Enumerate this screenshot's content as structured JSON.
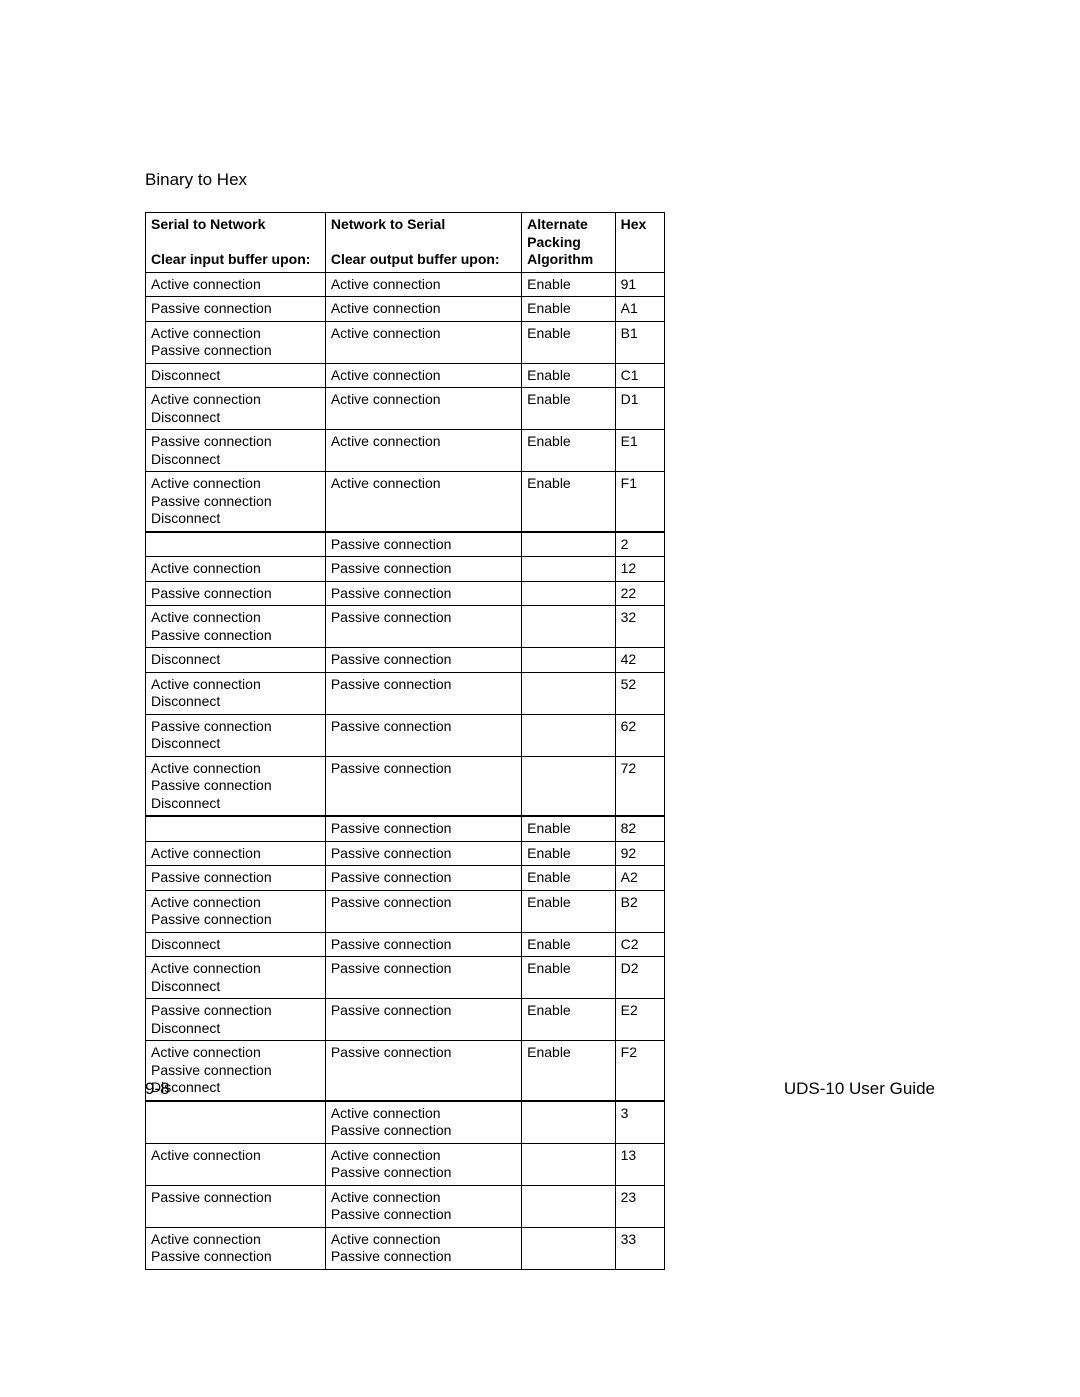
{
  "title": "Binary to Hex",
  "headers": {
    "col1_line1": "Serial to Network",
    "col1_line2": "Clear input buffer upon:",
    "col2_line1": "Network to Serial",
    "col2_line2": "Clear output buffer upon:",
    "col3_line1": "Alternate",
    "col3_line2": "Packing",
    "col3_line3": "Algorithm",
    "col4": "Hex"
  },
  "rows": [
    {
      "c1": "Active connection",
      "c2": "Active connection",
      "c3": "Enable",
      "c4": "91"
    },
    {
      "c1": "Passive connection",
      "c2": "Active connection",
      "c3": "Enable",
      "c4": "A1"
    },
    {
      "c1": "Active connection\nPassive connection",
      "c2": "Active connection",
      "c3": "Enable",
      "c4": "B1"
    },
    {
      "c1": "Disconnect",
      "c2": "Active connection",
      "c3": "Enable",
      "c4": "C1"
    },
    {
      "c1": "Active connection\nDisconnect",
      "c2": "Active connection",
      "c3": "Enable",
      "c4": "D1"
    },
    {
      "c1": "Passive connection\nDisconnect",
      "c2": "Active connection",
      "c3": "Enable",
      "c4": "E1"
    },
    {
      "c1": "Active connection\nPassive connection\nDisconnect",
      "c2": "Active connection",
      "c3": "Enable",
      "c4": "F1",
      "thickBottom": true
    },
    {
      "c1": "",
      "c2": "Passive connection",
      "c3": "",
      "c4": "2"
    },
    {
      "c1": "Active connection",
      "c2": "Passive connection",
      "c3": "",
      "c4": "12"
    },
    {
      "c1": "Passive connection",
      "c2": "Passive connection",
      "c3": "",
      "c4": "22"
    },
    {
      "c1": "Active connection\nPassive connection",
      "c2": "Passive connection",
      "c3": "",
      "c4": "32"
    },
    {
      "c1": "Disconnect",
      "c2": "Passive connection",
      "c3": "",
      "c4": "42"
    },
    {
      "c1": "Active connection\nDisconnect",
      "c2": "Passive connection",
      "c3": "",
      "c4": "52"
    },
    {
      "c1": "Passive connection\nDisconnect",
      "c2": "Passive connection",
      "c3": "",
      "c4": "62"
    },
    {
      "c1": "Active connection\nPassive connection\nDisconnect",
      "c2": "Passive connection",
      "c3": "",
      "c4": "72",
      "thickBottom": true
    },
    {
      "c1": "",
      "c2": "Passive connection",
      "c3": "Enable",
      "c4": "82"
    },
    {
      "c1": "Active connection",
      "c2": "Passive connection",
      "c3": "Enable",
      "c4": "92"
    },
    {
      "c1": "Passive connection",
      "c2": "Passive connection",
      "c3": "Enable",
      "c4": "A2"
    },
    {
      "c1": "Active connection\nPassive connection",
      "c2": "Passive connection",
      "c3": "Enable",
      "c4": "B2"
    },
    {
      "c1": "Disconnect",
      "c2": "Passive connection",
      "c3": "Enable",
      "c4": "C2"
    },
    {
      "c1": "Active connection\nDisconnect",
      "c2": "Passive connection",
      "c3": "Enable",
      "c4": "D2"
    },
    {
      "c1": "Passive connection\nDisconnect",
      "c2": "Passive connection",
      "c3": "Enable",
      "c4": "E2"
    },
    {
      "c1": "Active connection\nPassive connection\nDisconnect",
      "c2": "Passive connection",
      "c3": "Enable",
      "c4": "F2",
      "thickBottom": true
    },
    {
      "c1": "",
      "c2": "Active connection\nPassive connection",
      "c3": "",
      "c4": "3"
    },
    {
      "c1": "Active connection",
      "c2": "Active connection\nPassive connection",
      "c3": "",
      "c4": "13"
    },
    {
      "c1": "Passive connection",
      "c2": "Active connection\nPassive connection",
      "c3": "",
      "c4": "23"
    },
    {
      "c1": "Active connection\nPassive connection",
      "c2": "Active connection\nPassive connection",
      "c3": "",
      "c4": "33"
    }
  ],
  "footer": {
    "left": "9-8",
    "right": "UDS-10 User Guide"
  }
}
